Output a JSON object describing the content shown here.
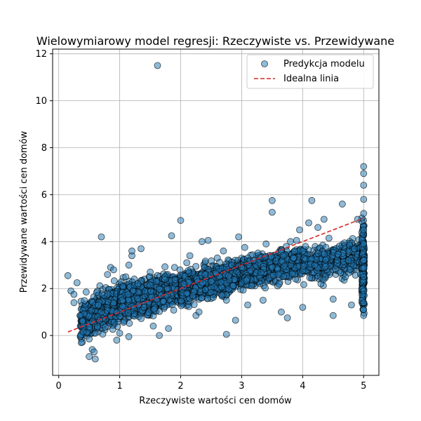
{
  "chart_data": {
    "type": "scatter",
    "title": "Wielowymiarowy model regresji: Rzeczywiste vs. Przewidywane",
    "xlabel": "Rzeczywiste wartości cen domów",
    "ylabel": "Przewidywane wartości cen domów",
    "xlim": [
      -0.1,
      5.25
    ],
    "ylim": [
      -1.7,
      12.2
    ],
    "xticks": [
      0,
      1,
      2,
      3,
      4,
      5
    ],
    "yticks": [
      0,
      2,
      4,
      6,
      8,
      10,
      12
    ],
    "grid": true,
    "legend_position": "top-right",
    "colors": {
      "scatter": "#1f77b4",
      "ideal_line": "#d62728"
    },
    "series": [
      {
        "name": "Predykcja modelu",
        "kind": "scatter",
        "points": [
          [
            0.15,
            2.55
          ],
          [
            0.2,
            1.9
          ],
          [
            0.25,
            1.75
          ],
          [
            0.25,
            1.4
          ],
          [
            0.3,
            2.25
          ],
          [
            0.35,
            0.85
          ],
          [
            0.4,
            0.15
          ],
          [
            0.45,
            1.85
          ],
          [
            0.5,
            -0.15
          ],
          [
            0.5,
            0.35
          ],
          [
            0.55,
            -0.6
          ],
          [
            0.5,
            -0.9
          ],
          [
            0.58,
            -0.7
          ],
          [
            0.6,
            -1.0
          ],
          [
            0.55,
            0.6
          ],
          [
            0.6,
            0.1
          ],
          [
            0.65,
            1.3
          ],
          [
            0.7,
            4.2
          ],
          [
            0.8,
            2.6
          ],
          [
            0.85,
            2.9
          ],
          [
            0.9,
            2.8
          ],
          [
            0.95,
            1.0
          ],
          [
            0.95,
            -0.2
          ],
          [
            1.0,
            0.1
          ],
          [
            1.05,
            2.1
          ],
          [
            1.1,
            2.5
          ],
          [
            1.15,
            -0.05
          ],
          [
            1.15,
            3.0
          ],
          [
            1.2,
            3.4
          ],
          [
            1.2,
            3.6
          ],
          [
            1.3,
            2.2
          ],
          [
            1.35,
            3.7
          ],
          [
            1.4,
            1.2
          ],
          [
            1.5,
            2.7
          ],
          [
            1.55,
            0.4
          ],
          [
            1.6,
            2.3
          ],
          [
            1.62,
            11.5
          ],
          [
            1.65,
            0.0
          ],
          [
            1.8,
            0.3
          ],
          [
            1.85,
            4.25
          ],
          [
            1.9,
            2.9
          ],
          [
            2.0,
            4.9
          ],
          [
            2.05,
            2.2
          ],
          [
            2.1,
            3.1
          ],
          [
            2.15,
            3.4
          ],
          [
            2.2,
            1.7
          ],
          [
            2.25,
            0.85
          ],
          [
            2.3,
            1.0
          ],
          [
            2.35,
            4.0
          ],
          [
            2.4,
            2.6
          ],
          [
            2.45,
            4.05
          ],
          [
            2.5,
            2.3
          ],
          [
            2.6,
            3.3
          ],
          [
            2.7,
            3.6
          ],
          [
            2.75,
            0.05
          ],
          [
            2.75,
            1.5
          ],
          [
            2.9,
            0.65
          ],
          [
            2.95,
            4.2
          ],
          [
            3.0,
            2.9
          ],
          [
            3.05,
            3.75
          ],
          [
            3.1,
            1.3
          ],
          [
            3.2,
            3.2
          ],
          [
            3.3,
            2.2
          ],
          [
            3.35,
            1.5
          ],
          [
            3.4,
            3.9
          ],
          [
            3.5,
            5.75
          ],
          [
            3.5,
            5.25
          ],
          [
            3.6,
            2.6
          ],
          [
            3.65,
            1.0
          ],
          [
            3.75,
            0.75
          ],
          [
            3.8,
            4.0
          ],
          [
            3.85,
            3.3
          ],
          [
            3.9,
            4.05
          ],
          [
            3.95,
            4.5
          ],
          [
            4.0,
            1.2
          ],
          [
            4.0,
            3.6
          ],
          [
            4.1,
            4.8
          ],
          [
            4.15,
            5.75
          ],
          [
            4.2,
            3.0
          ],
          [
            4.25,
            4.6
          ],
          [
            4.3,
            2.2
          ],
          [
            4.35,
            4.95
          ],
          [
            4.5,
            1.55
          ],
          [
            4.5,
            0.85
          ],
          [
            4.6,
            3.8
          ],
          [
            4.65,
            5.6
          ],
          [
            4.7,
            2.5
          ],
          [
            4.75,
            3.2
          ],
          [
            4.8,
            1.3
          ],
          [
            4.85,
            3.7
          ],
          [
            4.9,
            4.95
          ],
          [
            4.95,
            2.6
          ],
          [
            5.0,
            7.2
          ],
          [
            5.0,
            6.9
          ],
          [
            5.0,
            6.4
          ],
          [
            5.0,
            5.8
          ],
          [
            5.0,
            5.2
          ],
          [
            5.0,
            4.5
          ],
          [
            5.0,
            3.9
          ],
          [
            5.0,
            3.2
          ],
          [
            5.0,
            2.5
          ],
          [
            5.0,
            1.9
          ],
          [
            5.0,
            1.4
          ],
          [
            5.0,
            1.1
          ],
          [
            5.0,
            0.85
          ]
        ],
        "dense_clusters": [
          {
            "x_range": [
              0.35,
              1.0
            ],
            "y_center": [
              0.6,
              1.4
            ],
            "y_spread": 0.7,
            "count": 450
          },
          {
            "x_range": [
              1.0,
              2.0
            ],
            "y_center": [
              1.4,
              2.0
            ],
            "y_spread": 0.6,
            "count": 900
          },
          {
            "x_range": [
              2.0,
              3.0
            ],
            "y_center": [
              2.0,
              2.6
            ],
            "y_spread": 0.55,
            "count": 800
          },
          {
            "x_range": [
              3.0,
              4.0
            ],
            "y_center": [
              2.6,
              3.2
            ],
            "y_spread": 0.55,
            "count": 550
          },
          {
            "x_range": [
              4.0,
              4.95
            ],
            "y_center": [
              3.0,
              3.4
            ],
            "y_spread": 0.6,
            "count": 350
          },
          {
            "x_range": [
              4.97,
              5.01
            ],
            "y_center": [
              3.0,
              3.0
            ],
            "y_spread": 1.6,
            "count": 180
          }
        ]
      },
      {
        "name": "Idealna linia",
        "kind": "line",
        "x": [
          0.15,
          5.0
        ],
        "y": [
          0.15,
          5.0
        ]
      }
    ]
  }
}
